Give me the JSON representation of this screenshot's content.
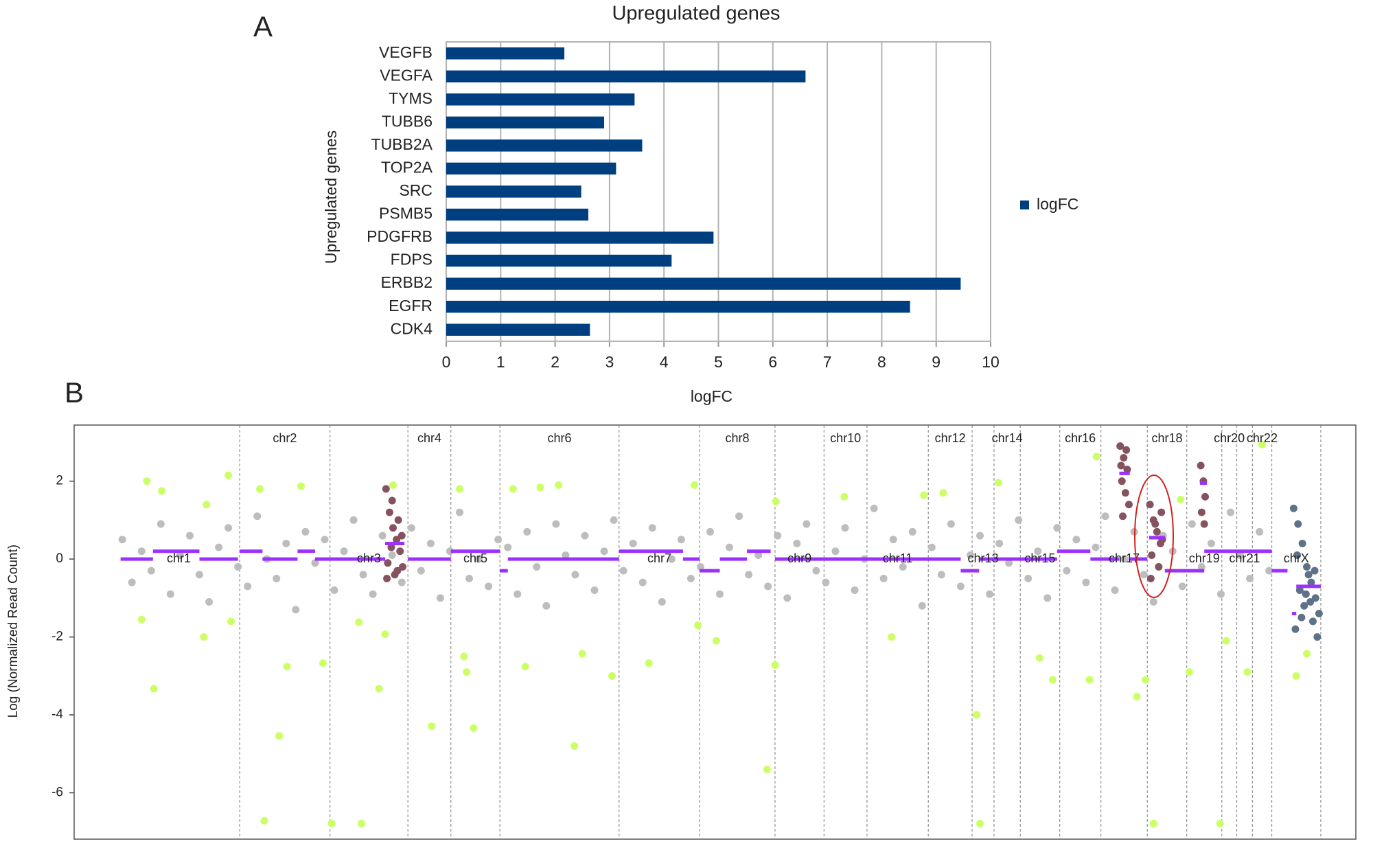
{
  "chart_data": [
    {
      "type": "bar",
      "panel_label": "A",
      "title": "Upregulated genes",
      "x_label": "logFC",
      "y_label": "Upregulated genes",
      "categories": [
        "VEGFB",
        "VEGFA",
        "TYMS",
        "TUBB6",
        "TUBB2A",
        "TOP2A",
        "SRC",
        "PSMB5",
        "PDGFRB",
        "FDPS",
        "ERBB2",
        "EGFR",
        "CDK4"
      ],
      "series": [
        {
          "name": "logFC",
          "color": "#003f7f",
          "values": [
            2.17,
            6.6,
            3.46,
            2.9,
            3.6,
            3.12,
            2.48,
            2.61,
            4.91,
            4.14,
            9.45,
            8.52,
            2.64
          ]
        }
      ],
      "xlim": [
        0,
        10
      ],
      "xticks": [
        0,
        1,
        2,
        3,
        4,
        5,
        6,
        7,
        8,
        9,
        10
      ],
      "grid": true,
      "legend": "right"
    },
    {
      "type": "scatter",
      "panel_label": "B",
      "y_label": "Log (Normalized Read Count)",
      "xlim": [
        0,
        1463
      ],
      "ylim": [
        -7.19,
        3.44
      ],
      "yticks": [
        -6,
        -4,
        -2,
        0,
        2
      ],
      "chromosomes": [
        {
          "name": "chr1",
          "start": 50,
          "end": 189
        },
        {
          "name": "chr2",
          "start": 189,
          "end": 292
        },
        {
          "name": "chr3",
          "start": 292,
          "end": 381
        },
        {
          "name": "chr4",
          "start": 381,
          "end": 430
        },
        {
          "name": "chr5",
          "start": 430,
          "end": 486
        },
        {
          "name": "chr6",
          "start": 486,
          "end": 622
        },
        {
          "name": "chr7",
          "start": 622,
          "end": 714
        },
        {
          "name": "chr8",
          "start": 714,
          "end": 800
        },
        {
          "name": "chr9",
          "start": 800,
          "end": 856
        },
        {
          "name": "chr10",
          "start": 856,
          "end": 905
        },
        {
          "name": "chr11",
          "start": 905,
          "end": 975
        },
        {
          "name": "chr12",
          "start": 975,
          "end": 1025
        },
        {
          "name": "chr13",
          "start": 1025,
          "end": 1050
        },
        {
          "name": "chr14",
          "start": 1050,
          "end": 1080
        },
        {
          "name": "chr15",
          "start": 1080,
          "end": 1125
        },
        {
          "name": "chr16",
          "start": 1125,
          "end": 1172
        },
        {
          "name": "chr17",
          "start": 1172,
          "end": 1225
        },
        {
          "name": "chr18",
          "start": 1225,
          "end": 1270
        },
        {
          "name": "chr19",
          "start": 1270,
          "end": 1310
        },
        {
          "name": "chr20",
          "start": 1310,
          "end": 1327
        },
        {
          "name": "chr21",
          "start": 1327,
          "end": 1345
        },
        {
          "name": "chr22",
          "start": 1345,
          "end": 1367
        },
        {
          "name": "chrX",
          "start": 1367,
          "end": 1423
        }
      ],
      "series": [
        {
          "color": "#bdbdbd",
          "x": [
            55,
            66,
            77,
            88,
            99,
            110,
            121,
            132,
            143,
            154,
            165,
            176,
            187,
            198,
            209,
            220,
            231,
            242,
            253,
            264,
            275,
            286,
            297,
            308,
            319,
            330,
            341,
            352,
            363,
            374,
            385,
            396,
            407,
            418,
            429,
            440,
            451,
            462,
            473,
            484,
            495,
            506,
            517,
            528,
            539,
            550,
            561,
            572,
            583,
            594,
            605,
            616,
            627,
            638,
            649,
            660,
            671,
            682,
            693,
            704,
            715,
            726,
            737,
            748,
            759,
            770,
            781,
            792,
            803,
            814,
            825,
            836,
            847,
            858,
            869,
            880,
            891,
            902,
            913,
            924,
            935,
            946,
            957,
            968,
            979,
            990,
            1001,
            1012,
            1023,
            1034,
            1045,
            1056,
            1067,
            1078,
            1089,
            1100,
            1111,
            1122,
            1133,
            1144,
            1155,
            1166,
            1177,
            1188,
            1199,
            1210,
            1221,
            1232,
            1243,
            1254,
            1265,
            1276,
            1287,
            1298,
            1309,
            1320,
            1331,
            1342,
            1353,
            1364
          ],
          "values": [
            0.5,
            -0.6,
            0.2,
            -0.3,
            0.9,
            -0.9,
            0.1,
            0.6,
            -0.4,
            -1.1,
            0.3,
            0.8,
            -0.2,
            -0.7,
            1.1,
            0.0,
            -0.5,
            0.4,
            -1.3,
            0.7,
            -0.1,
            0.5,
            -0.8,
            0.2,
            1.0,
            -0.4,
            -0.9,
            0.6,
            0.1,
            -0.6,
            0.8,
            -0.3,
            0.4,
            -1.0,
            0.2,
            1.2,
            -0.5,
            0.0,
            -0.7,
            0.5,
            0.3,
            -0.9,
            0.7,
            -0.2,
            -1.2,
            0.9,
            0.1,
            -0.4,
            0.6,
            -0.8,
            0.2,
            1.0,
            -0.3,
            0.4,
            -0.6,
            0.8,
            -1.1,
            0.0,
            0.5,
            -0.5,
            -0.2,
            0.7,
            -0.9,
            0.3,
            1.1,
            -0.4,
            0.1,
            -0.7,
            0.6,
            -1.0,
            0.4,
            0.9,
            -0.3,
            -0.6,
            0.2,
            0.8,
            -0.8,
            0.0,
            1.3,
            -0.5,
            0.5,
            -0.2,
            0.7,
            -1.2,
            0.3,
            -0.4,
            0.9,
            -0.7,
            0.1,
            0.6,
            -0.9,
            0.4,
            -0.1,
            1.0,
            -0.5,
            0.2,
            -1.0,
            0.8,
            -0.3,
            0.5,
            -0.6,
            0.3,
            1.1,
            -0.8,
            0.0,
            0.7,
            -0.4,
            -1.1,
            0.6,
            0.2,
            -0.7,
            0.9,
            -0.2,
            0.4,
            -0.9,
            1.2,
            0.1,
            -0.5,
            0.7,
            -0.3
          ]
        },
        {
          "color": "#ccff66",
          "x": [
            83,
            100,
            91,
            77,
            148,
            151,
            176,
            179,
            212,
            217,
            234,
            243,
            259,
            284,
            294,
            325,
            328,
            348,
            355,
            364,
            408,
            440,
            445,
            448,
            456,
            501,
            515,
            532,
            553,
            571,
            580,
            614,
            656,
            708,
            712,
            733,
            791,
            800,
            801,
            879,
            933,
            970,
            992,
            1030,
            1034,
            1055,
            1102,
            1117,
            1159,
            1167,
            1213,
            1223,
            1232,
            1263,
            1273,
            1308,
            1315,
            1339,
            1356,
            1395,
            1407
          ],
          "values": [
            2.0,
            1.75,
            -3.33,
            -1.55,
            -2.0,
            1.4,
            2.15,
            -1.6,
            1.8,
            -6.72,
            -4.54,
            -2.76,
            1.87,
            -2.67,
            -6.79,
            -1.62,
            -6.79,
            -3.33,
            -1.93,
            1.9,
            -4.29,
            1.8,
            -2.5,
            -2.9,
            -4.34,
            1.8,
            -2.76,
            1.84,
            1.9,
            -4.8,
            -2.43,
            -3.0,
            -2.67,
            1.9,
            -1.7,
            -2.1,
            -5.4,
            -2.72,
            1.48,
            1.6,
            -2.0,
            1.64,
            1.7,
            -4.0,
            -6.79,
            1.96,
            -2.54,
            -3.1,
            -3.1,
            2.63,
            -3.53,
            -3.1,
            -6.79,
            1.53,
            -2.9,
            -6.79,
            -2.1,
            -2.9,
            2.94,
            -3.0,
            -2.43
          ]
        },
        {
          "color": "#85525f",
          "x": [
            356,
            360,
            364,
            368,
            372,
            358,
            366,
            374,
            362,
            370,
            357,
            375,
            363,
            369,
            1194,
            1198,
            1202,
            1196,
            1200,
            1204,
            1197,
            1201,
            1195,
            1228,
            1232,
            1236,
            1240,
            1230,
            1238,
            1234,
            1242,
            1229,
            1241,
            1286,
            1289,
            1291,
            1287,
            1290
          ],
          "values": [
            1.8,
            1.2,
            0.8,
            0.5,
            0.2,
            -0.1,
            -0.4,
            0.6,
            0.3,
            1.0,
            -0.5,
            -0.2,
            1.5,
            -0.3,
            2.9,
            2.6,
            2.3,
            2.0,
            1.7,
            1.4,
            1.1,
            2.8,
            2.4,
            1.4,
            1.0,
            0.7,
            0.4,
            0.1,
            -0.2,
            0.9,
            0.5,
            -0.5,
            1.2,
            2.4,
            2.0,
            1.6,
            1.2,
            0.9
          ]
        },
        {
          "color": "#5d7187",
          "x": [
            1392,
            1397,
            1402,
            1407,
            1412,
            1417,
            1421,
            1394,
            1399,
            1404,
            1409,
            1414,
            1419,
            1396,
            1406,
            1416,
            1401,
            1411
          ],
          "values": [
            1.3,
            0.9,
            0.4,
            -0.2,
            -0.6,
            -1.0,
            -1.4,
            -1.8,
            -0.8,
            -1.2,
            -0.4,
            -1.6,
            -2.0,
            0.1,
            -0.9,
            -0.3,
            -1.5,
            -1.1
          ]
        }
      ],
      "segments": {
        "color": "#9b30ff",
        "start": [
          53,
          90,
          143,
          189,
          215,
          255,
          275,
          292,
          355,
          381,
          430,
          486,
          495,
          622,
          695,
          714,
          737,
          768,
          800,
          1012,
          1033,
          1050,
          1122,
          1160,
          1172,
          1193,
          1205,
          1227,
          1245,
          1285,
          1290,
          1333,
          1367,
          1390,
          1395
        ],
        "end": [
          90,
          143,
          187,
          215,
          255,
          275,
          292,
          355,
          377,
          430,
          486,
          495,
          622,
          695,
          714,
          737,
          768,
          795,
          1012,
          1033,
          1050,
          1122,
          1160,
          1172,
          1193,
          1205,
          1225,
          1245,
          1290,
          1293,
          1333,
          1367,
          1385,
          1395,
          1423
        ],
        "values": [
          0,
          0.2,
          0,
          0.2,
          0,
          0.2,
          0,
          0,
          0.4,
          0,
          0.2,
          -0.3,
          0,
          0.2,
          0,
          -0.3,
          0,
          0.2,
          0,
          -0.3,
          0,
          0,
          0.2,
          0,
          0,
          2.2,
          0,
          0.55,
          -0.3,
          1.95,
          0.2,
          0.2,
          -0.3,
          -1.4,
          -0.7
        ]
      }
    }
  ]
}
